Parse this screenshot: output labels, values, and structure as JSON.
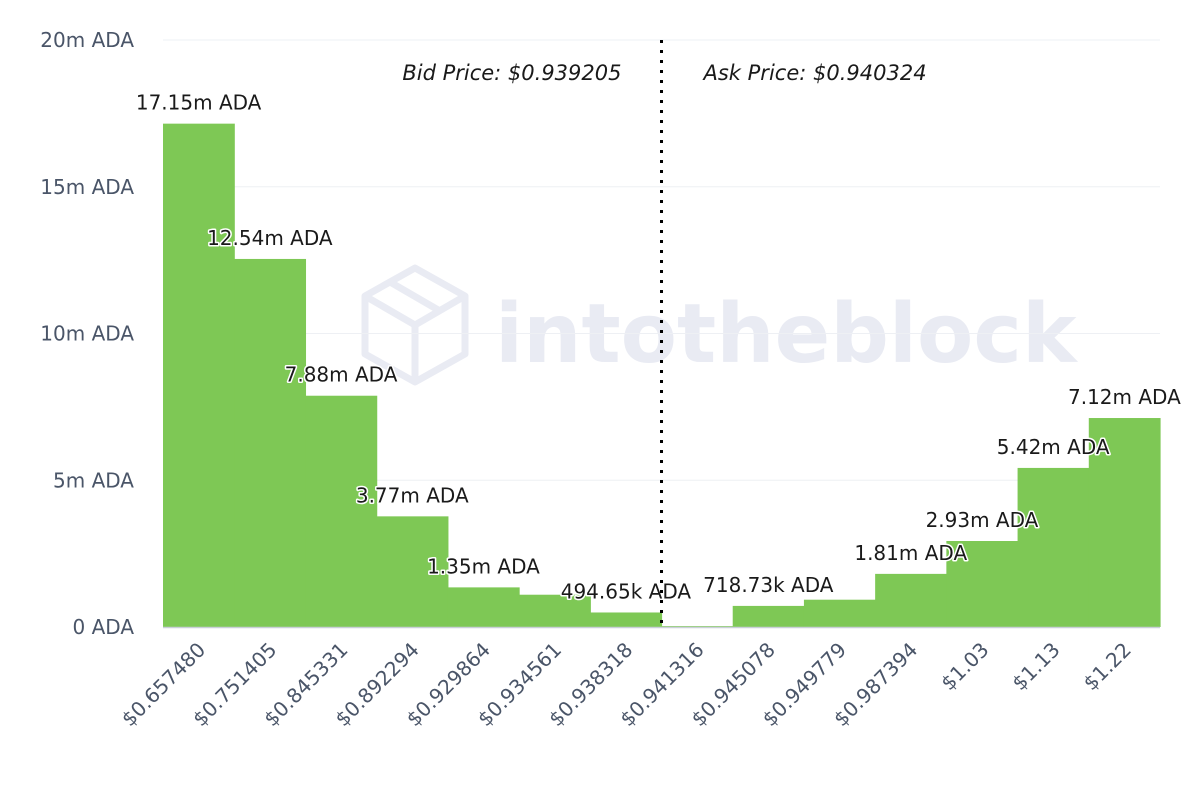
{
  "watermark": {
    "text": "intotheblock",
    "logo_icon": "cube-logo-icon"
  },
  "bid_label": "Bid Price: $0.939205",
  "ask_label": "Ask Price: $0.940324",
  "colors": {
    "bar": "#7ec855",
    "divider": "#000000",
    "axis": "#c9cfd8"
  },
  "chart_data": {
    "type": "bar",
    "categories": [
      "$0.657480",
      "$0.751405",
      "$0.845331",
      "$0.892294",
      "$0.929864",
      "$0.934561",
      "$0.938318",
      "$0.941316",
      "$0.945078",
      "$0.949779",
      "$0.987394",
      "$1.03",
      "$1.13",
      "$1.22"
    ],
    "series": [
      {
        "values": [
          17.15,
          12.54,
          7.88,
          3.77,
          1.35,
          1.1,
          0.49465,
          0.03,
          0.71873,
          0.93,
          1.81,
          2.93,
          5.42,
          7.12
        ]
      }
    ],
    "data_labels": [
      "17.15m ADA",
      "12.54m ADA",
      "7.88m ADA",
      "3.77m ADA",
      "1.35m ADA",
      "",
      "494.65k ADA",
      "",
      "718.73k ADA",
      "",
      "1.81m ADA",
      "2.93m ADA",
      "5.42m ADA",
      "7.12m ADA"
    ],
    "y_ticks": [
      0,
      5,
      10,
      15,
      20
    ],
    "y_tick_labels": [
      "0 ADA",
      "5m ADA",
      "10m ADA",
      "15m ADA",
      "20m ADA"
    ],
    "ylim": [
      0,
      20
    ],
    "unit": "million ADA",
    "grid": true,
    "legend": "none",
    "divider_after_category": "$0.938318",
    "title": "",
    "xlabel": "",
    "ylabel": ""
  }
}
